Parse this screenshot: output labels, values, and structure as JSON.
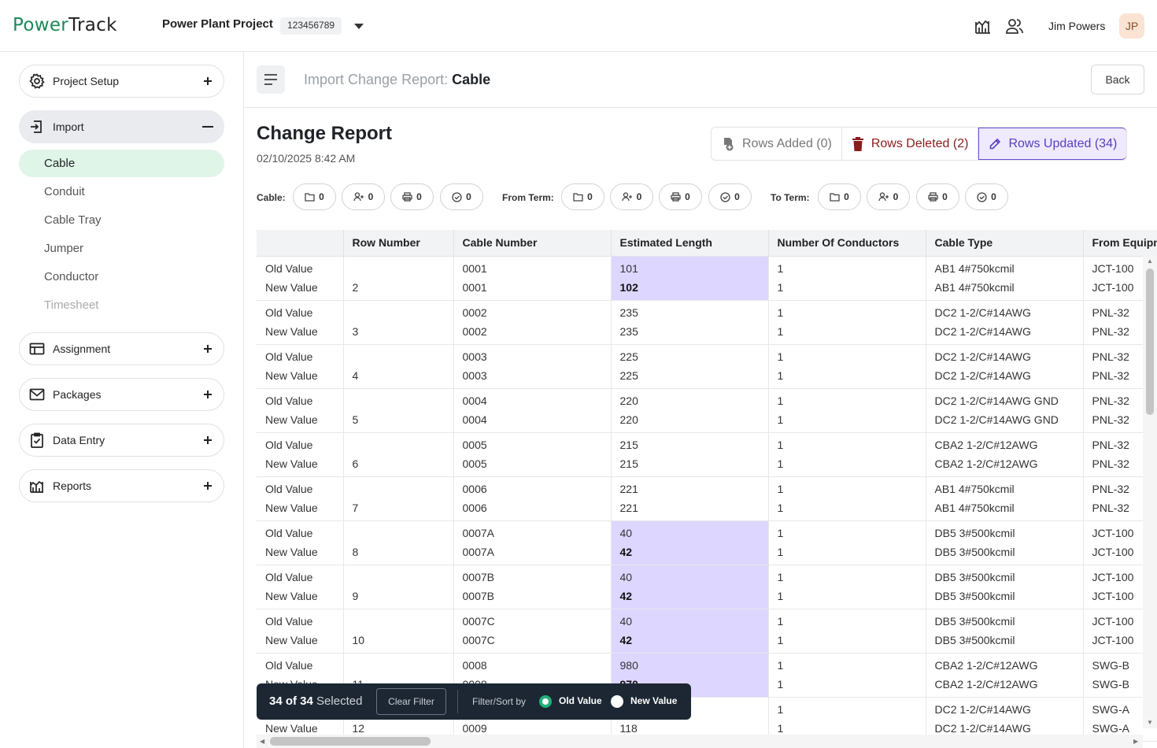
{
  "app": {
    "logo_power": "Power",
    "logo_track": "Track"
  },
  "header": {
    "project_name": "Power Plant Project",
    "project_id": "123456789",
    "user_name": "Jim Powers",
    "user_initials": "JP"
  },
  "sidebar": {
    "project_setup": "Project Setup",
    "import": "Import",
    "import_items": [
      "Cable",
      "Conduit",
      "Cable Tray",
      "Jumper",
      "Conductor",
      "Timesheet"
    ],
    "assignment": "Assignment",
    "packages": "Packages",
    "data_entry": "Data Entry",
    "reports": "Reports"
  },
  "page": {
    "crumb_prefix": "Import Change Report:",
    "crumb_current": "Cable",
    "back_label": "Back",
    "title": "Change Report",
    "date": "02/10/2025 8:42 AM"
  },
  "tabs": {
    "added": "Rows Added (0)",
    "deleted": "Rows Deleted (2)",
    "updated": "Rows Updated (34)"
  },
  "filters": {
    "cable_label": "Cable:",
    "from_label": "From Term:",
    "to_label": "To Term:",
    "count": "0"
  },
  "table": {
    "columns": [
      "",
      "Row Number",
      "Cable Number",
      "Estimated Length",
      "Number Of Conductors",
      "Cable Type",
      "From Equipm"
    ],
    "old_label": "Old Value",
    "new_label": "New Value",
    "rows": [
      {
        "row": "2",
        "cable": [
          "0001",
          "0001"
        ],
        "len": [
          "101",
          "102"
        ],
        "len_changed": true,
        "cond": [
          "1",
          "1"
        ],
        "type": [
          "AB1 4#750kcmil",
          "AB1 4#750kcmil"
        ],
        "from": [
          "JCT-100",
          "JCT-100"
        ]
      },
      {
        "row": "3",
        "cable": [
          "0002",
          "0002"
        ],
        "len": [
          "235",
          "235"
        ],
        "len_changed": false,
        "cond": [
          "1",
          "1"
        ],
        "type": [
          "DC2 1-2/C#14AWG",
          "DC2 1-2/C#14AWG"
        ],
        "from": [
          "PNL-32",
          "PNL-32"
        ]
      },
      {
        "row": "4",
        "cable": [
          "0003",
          "0003"
        ],
        "len": [
          "225",
          "225"
        ],
        "len_changed": false,
        "cond": [
          "1",
          "1"
        ],
        "type": [
          "DC2 1-2/C#14AWG",
          "DC2 1-2/C#14AWG"
        ],
        "from": [
          "PNL-32",
          "PNL-32"
        ]
      },
      {
        "row": "5",
        "cable": [
          "0004",
          "0004"
        ],
        "len": [
          "220",
          "220"
        ],
        "len_changed": false,
        "cond": [
          "1",
          "1"
        ],
        "type": [
          "DC2 1-2/C#14AWG GND",
          "DC2 1-2/C#14AWG GND"
        ],
        "from": [
          "PNL-32",
          "PNL-32"
        ]
      },
      {
        "row": "6",
        "cable": [
          "0005",
          "0005"
        ],
        "len": [
          "215",
          "215"
        ],
        "len_changed": false,
        "cond": [
          "1",
          "1"
        ],
        "type": [
          "CBA2 1-2/C#12AWG",
          "CBA2 1-2/C#12AWG"
        ],
        "from": [
          "PNL-32",
          "PNL-32"
        ]
      },
      {
        "row": "7",
        "cable": [
          "0006",
          "0006"
        ],
        "len": [
          "221",
          "221"
        ],
        "len_changed": false,
        "cond": [
          "1",
          "1"
        ],
        "type": [
          "AB1 4#750kcmil",
          "AB1 4#750kcmil"
        ],
        "from": [
          "PNL-32",
          "PNL-32"
        ]
      },
      {
        "row": "8",
        "cable": [
          "0007A",
          "0007A"
        ],
        "len": [
          "40",
          "42"
        ],
        "len_changed": true,
        "cond": [
          "1",
          "1"
        ],
        "type": [
          "DB5 3#500kcmil",
          "DB5 3#500kcmil"
        ],
        "from": [
          "JCT-100",
          "JCT-100"
        ]
      },
      {
        "row": "9",
        "cable": [
          "0007B",
          "0007B"
        ],
        "len": [
          "40",
          "42"
        ],
        "len_changed": true,
        "cond": [
          "1",
          "1"
        ],
        "type": [
          "DB5 3#500kcmil",
          "DB5 3#500kcmil"
        ],
        "from": [
          "JCT-100",
          "JCT-100"
        ]
      },
      {
        "row": "10",
        "cable": [
          "0007C",
          "0007C"
        ],
        "len": [
          "40",
          "42"
        ],
        "len_changed": true,
        "cond": [
          "1",
          "1"
        ],
        "type": [
          "DB5 3#500kcmil",
          "DB5 3#500kcmil"
        ],
        "from": [
          "JCT-100",
          "JCT-100"
        ]
      },
      {
        "row": "11",
        "cable": [
          "0008",
          "0008"
        ],
        "len": [
          "980",
          "970"
        ],
        "len_changed": true,
        "cond": [
          "1",
          "1"
        ],
        "type": [
          "CBA2 1-2/C#12AWG",
          "CBA2 1-2/C#12AWG"
        ],
        "from": [
          "SWG-B",
          "SWG-B"
        ]
      },
      {
        "row": "12",
        "cable": [
          "0009",
          "0009"
        ],
        "len": [
          "118",
          "118"
        ],
        "len_changed": false,
        "cond": [
          "1",
          "1"
        ],
        "type": [
          "DC2 1-2/C#14AWG",
          "DC2 1-2/C#14AWG"
        ],
        "from": [
          "SWG-A",
          "SWG-A"
        ]
      }
    ]
  },
  "floatbar": {
    "selected_count": "34 of 34",
    "selected_label": "Selected",
    "clear_filter": "Clear Filter",
    "filter_sort_by": "Filter/Sort by",
    "old_value": "Old Value",
    "new_value": "New Value"
  },
  "colors": {
    "brand": "#1b8a5a",
    "highlight": "#ddd6ff",
    "accent": "#6b4fd0"
  }
}
